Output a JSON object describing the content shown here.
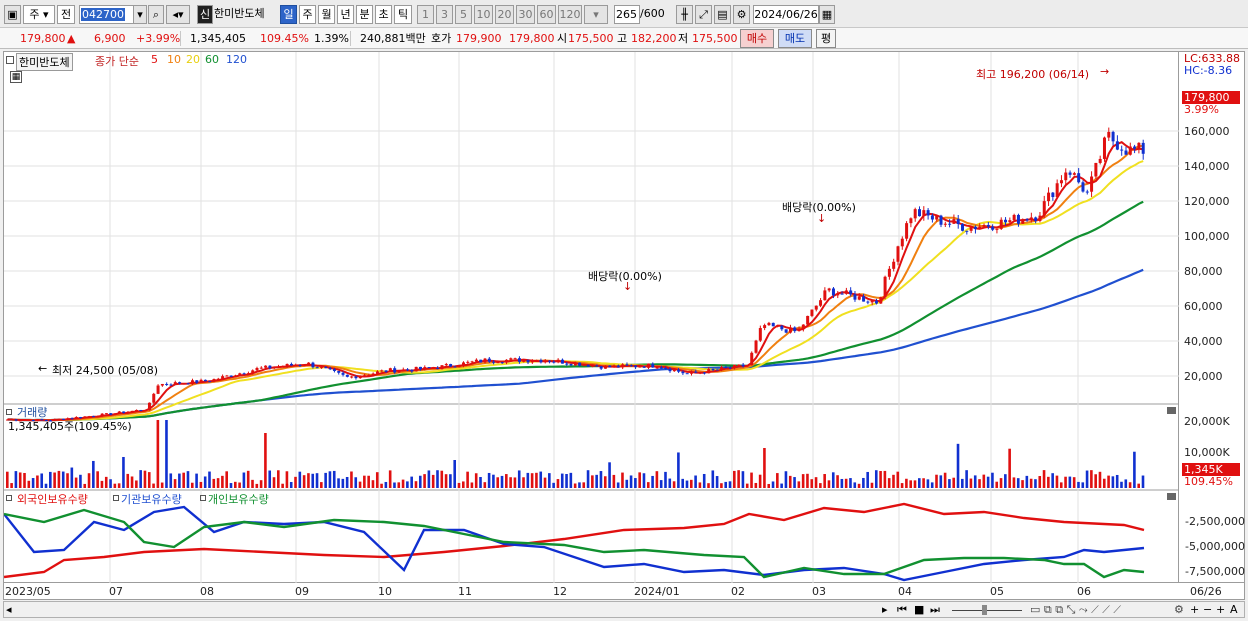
{
  "toolbar": {
    "market": "주",
    "prev_label": "전",
    "code": "042700",
    "stock_badge": "신",
    "stock_name": "한미반도체",
    "periods": [
      "일",
      "주",
      "월",
      "년",
      "분",
      "초",
      "틱"
    ],
    "intervals": [
      "1",
      "3",
      "5",
      "10",
      "20",
      "30",
      "60",
      "120"
    ],
    "count": "265",
    "count_max": "/600",
    "date": "2024/06/26"
  },
  "quote": {
    "price": "179,800",
    "change": "6,900",
    "change_pct": "+3.99%",
    "volume": "1,345,405",
    "volume_ratio": "109.45%",
    "turnover": "1.39%",
    "amount": "240,881백만",
    "ask_label": "호가",
    "ask": "179,900",
    "bid": "179,800",
    "open_label": "시",
    "open": "175,500",
    "high_label": "고",
    "high": "182,200",
    "low_label": "저",
    "low": "175,500",
    "buy_label": "매수",
    "sell_label": "매도",
    "eval_label": "평"
  },
  "price_panel": {
    "name": "한미반도체",
    "ma_label": "종가 단순",
    "ma_periods": [
      "5",
      "10",
      "20",
      "60",
      "120"
    ],
    "lc": "LC:633.88",
    "hc": "HC:-8.36",
    "last_price": "179,800",
    "last_pct": "3.99%",
    "high_note": "최고 196,200 (06/14)",
    "low_note": "최저 24,500 (05/08)",
    "div1": "배당락(0.00%)",
    "div2": "배당락(0.00%)",
    "y_ticks": [
      "160,000",
      "140,000",
      "120,000",
      "100,000",
      "80,000",
      "60,000",
      "40,000",
      "20,000"
    ]
  },
  "volume_panel": {
    "title": "거래량",
    "value": "1,345,405주(109.45%)",
    "y_ticks": [
      "20,000K",
      "10,000K"
    ],
    "last": "1,345K",
    "last_pct": "109.45%"
  },
  "holdings_panel": {
    "foreign": "외국인보유수량",
    "inst": "기관보유수량",
    "indiv": "개인보유수량",
    "y_ticks": [
      "-2,500,000",
      "-5,000,000",
      "-7,500,000"
    ]
  },
  "x_ticks": [
    "2023/05",
    "07",
    "08",
    "09",
    "10",
    "11",
    "12",
    "2024/01",
    "02",
    "03",
    "04",
    "05",
    "06",
    "06/26"
  ],
  "colors": {
    "up": "#e01010",
    "down": "#1030d0",
    "ma5": "#e01010",
    "ma10": "#f08010",
    "ma20": "#f0e020",
    "ma60": "#119030",
    "ma120": "#2050d0"
  }
}
